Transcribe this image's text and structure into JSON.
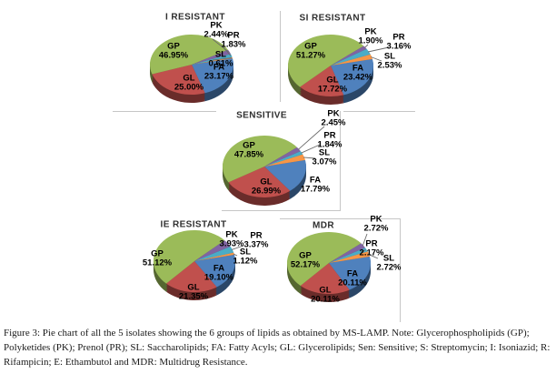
{
  "figure": {
    "caption": "Figure 3: Pie chart of all the 5 isolates showing the 6 groups of lipids as obtained by MS-LAMP. Note: Glycerophospholipids (GP); Polyketides (PK); Prenol (PR); SL: Saccharolipids; FA: Fatty Acyls; GL: Glycerolipids; Sen: Sensitive; S: Streptomycin; I: Isoniazid; R: Rifampicin; E: Ethambutol and MDR: Multidrug Resistance."
  },
  "colors": {
    "GP": "#9BBB59",
    "PK": "#8064A2",
    "PR": "#4BACC6",
    "SL": "#F79646",
    "FA": "#4F81BD",
    "GL": "#C0504D"
  },
  "chart_data": [
    {
      "type": "pie",
      "title": "I RESISTANT",
      "slices": [
        {
          "name": "GP",
          "pct": "46.95%",
          "value": 46.95
        },
        {
          "name": "PK",
          "pct": "2.44%",
          "value": 2.44
        },
        {
          "name": "PR",
          "pct": "1.83%",
          "value": 1.83
        },
        {
          "name": "SL",
          "pct": "0.61%",
          "value": 0.61
        },
        {
          "name": "FA",
          "pct": "23.17%",
          "value": 23.17
        },
        {
          "name": "GL",
          "pct": "25.00%",
          "value": 25.0
        }
      ]
    },
    {
      "type": "pie",
      "title": "SI RESISTANT",
      "slices": [
        {
          "name": "GP",
          "pct": "51.27%",
          "value": 51.27
        },
        {
          "name": "PK",
          "pct": "1.90%",
          "value": 1.9
        },
        {
          "name": "PR",
          "pct": "3.16%",
          "value": 3.16
        },
        {
          "name": "SL",
          "pct": "2.53%",
          "value": 2.53
        },
        {
          "name": "FA",
          "pct": "23.42%",
          "value": 23.42
        },
        {
          "name": "GL",
          "pct": "17.72%",
          "value": 17.72
        }
      ]
    },
    {
      "type": "pie",
      "title": "SENSITIVE",
      "slices": [
        {
          "name": "GP",
          "pct": "47.85%",
          "value": 47.85
        },
        {
          "name": "PK",
          "pct": "2.45%",
          "value": 2.45
        },
        {
          "name": "PR",
          "pct": "1.84%",
          "value": 1.84
        },
        {
          "name": "SL",
          "pct": "3.07%",
          "value": 3.07
        },
        {
          "name": "FA",
          "pct": "17.79%",
          "value": 17.79
        },
        {
          "name": "GL",
          "pct": "26.99%",
          "value": 26.99
        }
      ]
    },
    {
      "type": "pie",
      "title": "IE RESISTANT",
      "slices": [
        {
          "name": "GP",
          "pct": "51.12%",
          "value": 51.12
        },
        {
          "name": "PK",
          "pct": "3.93%",
          "value": 3.93
        },
        {
          "name": "PR",
          "pct": "3.37%",
          "value": 3.37
        },
        {
          "name": "SL",
          "pct": "1.12%",
          "value": 1.12
        },
        {
          "name": "FA",
          "pct": "19.10%",
          "value": 19.1
        },
        {
          "name": "GL",
          "pct": "21.35%",
          "value": 21.35
        }
      ]
    },
    {
      "type": "pie",
      "title": "MDR",
      "slices": [
        {
          "name": "GP",
          "pct": "52.17%",
          "value": 52.17
        },
        {
          "name": "PK",
          "pct": "2.72%",
          "value": 2.72
        },
        {
          "name": "PR",
          "pct": "2.17%",
          "value": 2.17
        },
        {
          "name": "SL",
          "pct": "2.72%",
          "value": 2.72
        },
        {
          "name": "FA",
          "pct": "20.11%",
          "value": 20.11
        },
        {
          "name": "GL",
          "pct": "20.11%",
          "value": 20.11
        }
      ]
    }
  ]
}
